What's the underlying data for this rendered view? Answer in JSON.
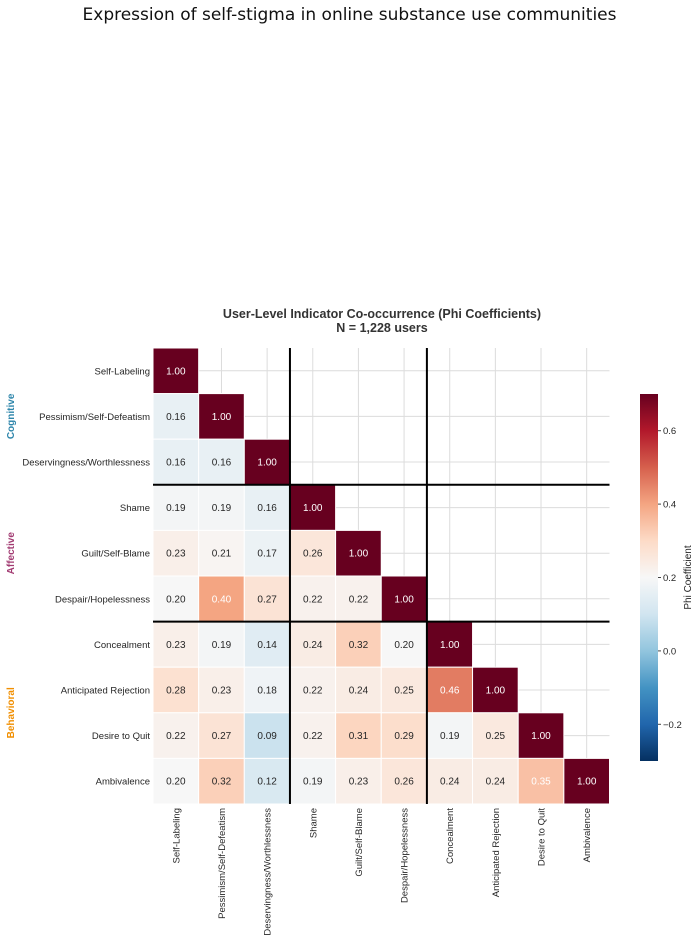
{
  "figure": {
    "suptitle": "Expression of self-stigma in online substance use communities"
  },
  "chart_data": {
    "type": "heatmap",
    "title": "User-Level Indicator Co-occurrence (Phi Coefficients)",
    "subtitle": "N = 1,228 users",
    "labels": [
      "Self-Labeling",
      "Pessimism/Self-Defeatism",
      "Deservingness/Worthlessness",
      "Shame",
      "Guilt/Self-Blame",
      "Despair/Hopelessness",
      "Concealment",
      "Anticipated Rejection",
      "Desire to Quit",
      "Ambivalence"
    ],
    "values": [
      [
        1.0
      ],
      [
        0.16,
        1.0
      ],
      [
        0.16,
        0.16,
        1.0
      ],
      [
        0.19,
        0.19,
        0.16,
        1.0
      ],
      [
        0.23,
        0.21,
        0.17,
        0.26,
        1.0
      ],
      [
        0.2,
        0.4,
        0.27,
        0.22,
        0.22,
        1.0
      ],
      [
        0.23,
        0.19,
        0.14,
        0.24,
        0.32,
        0.2,
        1.0
      ],
      [
        0.28,
        0.23,
        0.18,
        0.22,
        0.24,
        0.25,
        0.46,
        1.0
      ],
      [
        0.22,
        0.27,
        0.09,
        0.22,
        0.31,
        0.29,
        0.19,
        0.25,
        1.0
      ],
      [
        0.2,
        0.32,
        0.12,
        0.19,
        0.23,
        0.26,
        0.24,
        0.24,
        0.35,
        1.0
      ]
    ],
    "groups": [
      {
        "name": "Cognitive",
        "start": 0,
        "end": 2,
        "color": "#2E86AB"
      },
      {
        "name": "Affective",
        "start": 3,
        "end": 5,
        "color": "#A23B72"
      },
      {
        "name": "Behavioral",
        "start": 6,
        "end": 9,
        "color": "#F18F01"
      }
    ],
    "colorbar": {
      "label": "Phi Coefficient",
      "vmin": -0.3,
      "vmax": 0.7,
      "ticks": [
        -0.2,
        0.0,
        0.2,
        0.4,
        0.6
      ],
      "tick_labels": [
        "−0.2",
        "0.0",
        "0.2",
        "0.4",
        "0.6"
      ]
    },
    "colormap": "RdBu_r",
    "value_format": "2 decimals",
    "grid": true
  }
}
